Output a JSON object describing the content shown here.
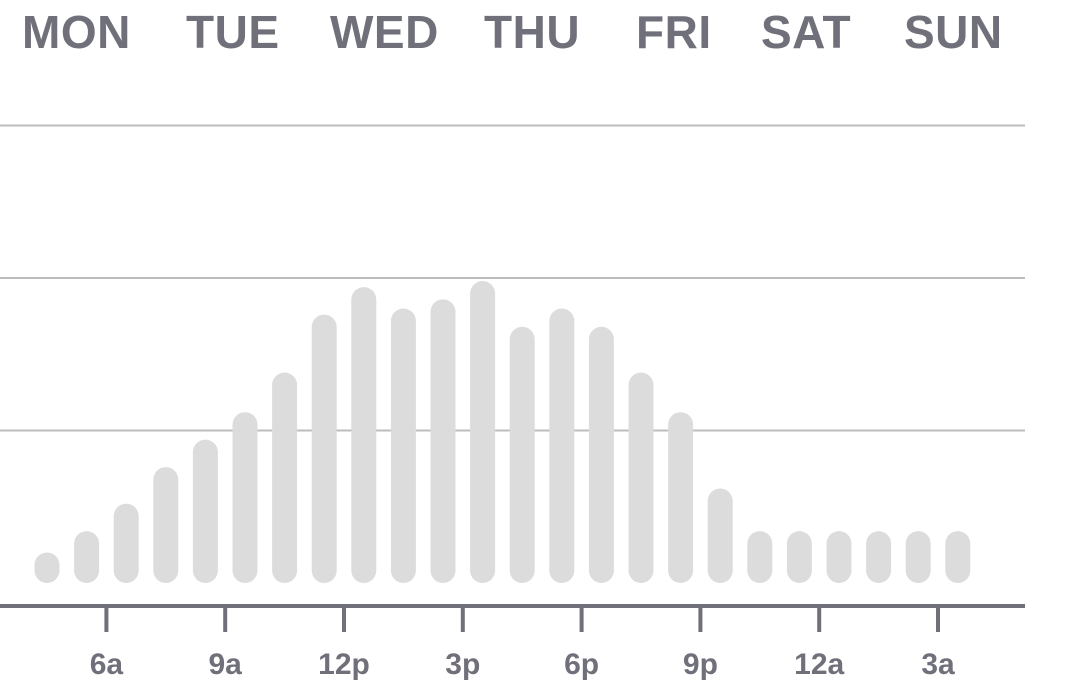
{
  "day_tabs": [
    "MON",
    "TUE",
    "WED",
    "THU",
    "FRI",
    "SAT",
    "SUN"
  ],
  "colors": {
    "bar": "#dcdcdc",
    "gridline": "#bdbdbd",
    "axis": "#70707a",
    "text": "#70707a"
  },
  "chart_data": {
    "type": "bar",
    "title": "",
    "xlabel": "",
    "ylabel": "",
    "x": [
      4,
      5,
      6,
      7,
      8,
      9,
      10,
      11,
      12,
      13,
      14,
      15,
      16,
      17,
      18,
      19,
      20,
      21,
      22,
      23,
      0,
      1,
      2,
      3
    ],
    "values": [
      10,
      17,
      26,
      38,
      47,
      56,
      69,
      88,
      97,
      90,
      93,
      99,
      84,
      90,
      84,
      69,
      56,
      31,
      17,
      17,
      17,
      17,
      17,
      17
    ],
    "ylim": [
      0,
      142
    ],
    "gridlines": [
      50,
      100,
      150
    ],
    "grid": true,
    "x_ticks": [
      {
        "hour": 6,
        "label": "6a"
      },
      {
        "hour": 9,
        "label": "9a"
      },
      {
        "hour": 12,
        "label": "12p"
      },
      {
        "hour": 15,
        "label": "3p"
      },
      {
        "hour": 18,
        "label": "6p"
      },
      {
        "hour": 21,
        "label": "9p"
      },
      {
        "hour": 0,
        "label": "12a"
      },
      {
        "hour": 3,
        "label": "3a"
      }
    ]
  }
}
